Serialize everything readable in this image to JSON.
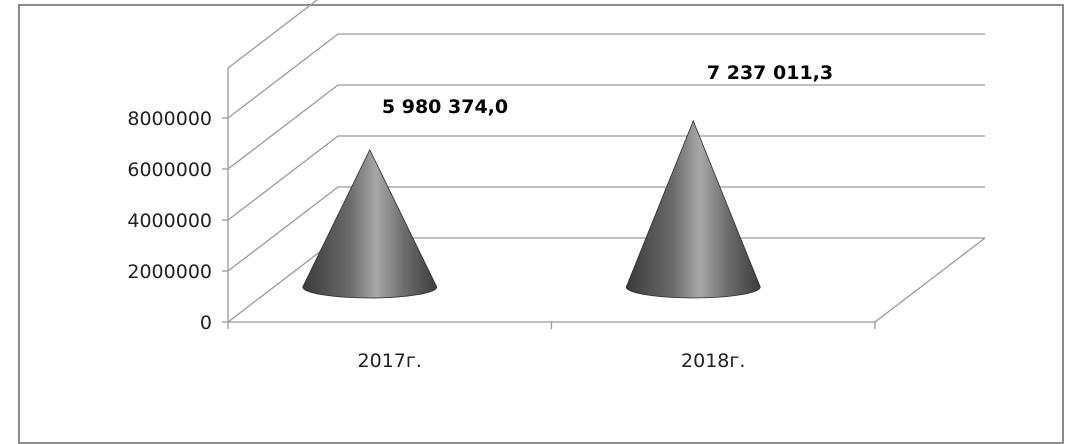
{
  "chart_data": {
    "type": "bar",
    "style": "3d-cone",
    "categories": [
      "2017г.",
      "2018г."
    ],
    "values": [
      5980374.0,
      7237011.3
    ],
    "data_labels": [
      "5 980 374,0",
      "7 237 011,3"
    ],
    "y_ticks": [
      "0",
      "2000000",
      "4000000",
      "6000000",
      "8000000"
    ],
    "ylim": [
      0,
      8000000
    ],
    "grid": true,
    "legend": "none",
    "colors": {
      "cone_dark": "#3a3a3a",
      "cone_light": "#a8a8a8",
      "grid": "#9a9a9a"
    }
  }
}
